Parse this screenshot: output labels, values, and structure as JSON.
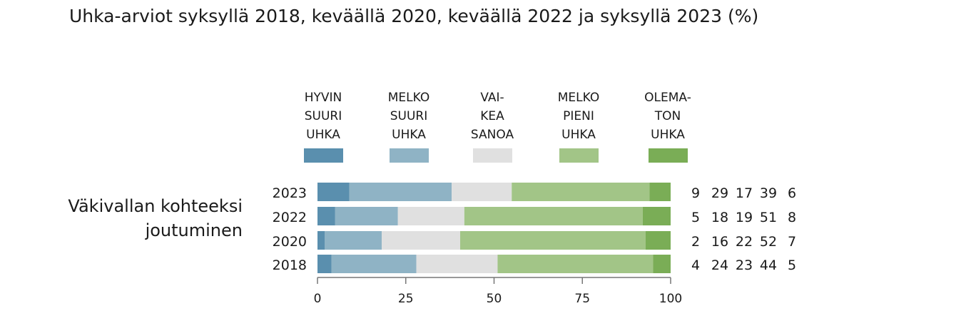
{
  "chart_data": {
    "type": "bar",
    "orientation": "horizontal",
    "stacked": true,
    "title": "Uhka-arviot syksyllä 2018, keväällä 2020, keväällä 2022 ja syksyllä 2023 (%)",
    "group_label": [
      "Väkivallan kohteeksi",
      "joutuminen"
    ],
    "categories": [
      "2023",
      "2022",
      "2020",
      "2018"
    ],
    "series": [
      {
        "name": "HYVIN SUURI UHKA",
        "legend_lines": [
          "HYVIN",
          "SUURI",
          "UHKA"
        ],
        "color": "#5a8fae",
        "values": [
          9,
          5,
          2,
          4
        ]
      },
      {
        "name": "MELKO SUURI UHKA",
        "legend_lines": [
          "MELKO",
          "SUURI",
          "UHKA"
        ],
        "color": "#8fb3c5",
        "values": [
          29,
          18,
          16,
          24
        ]
      },
      {
        "name": "VAIKEA SANOA",
        "legend_lines": [
          "VAI-",
          "KEA",
          "SANOA"
        ],
        "color": "#e0e0e0",
        "values": [
          17,
          19,
          22,
          23
        ]
      },
      {
        "name": "MELKO PIENI UHKA",
        "legend_lines": [
          "MELKO",
          "PIENI",
          "UHKA"
        ],
        "color": "#a2c587",
        "values": [
          39,
          51,
          52,
          44
        ]
      },
      {
        "name": "OLEMATON UHKA",
        "legend_lines": [
          "OLEMA-",
          "TON",
          "UHKA"
        ],
        "color": "#7aad56",
        "values": [
          6,
          8,
          7,
          5
        ]
      }
    ],
    "xlim": [
      0,
      100
    ],
    "xticks": [
      "0",
      "25",
      "50",
      "75",
      "100"
    ],
    "grid": false,
    "legend_placement": "top"
  }
}
